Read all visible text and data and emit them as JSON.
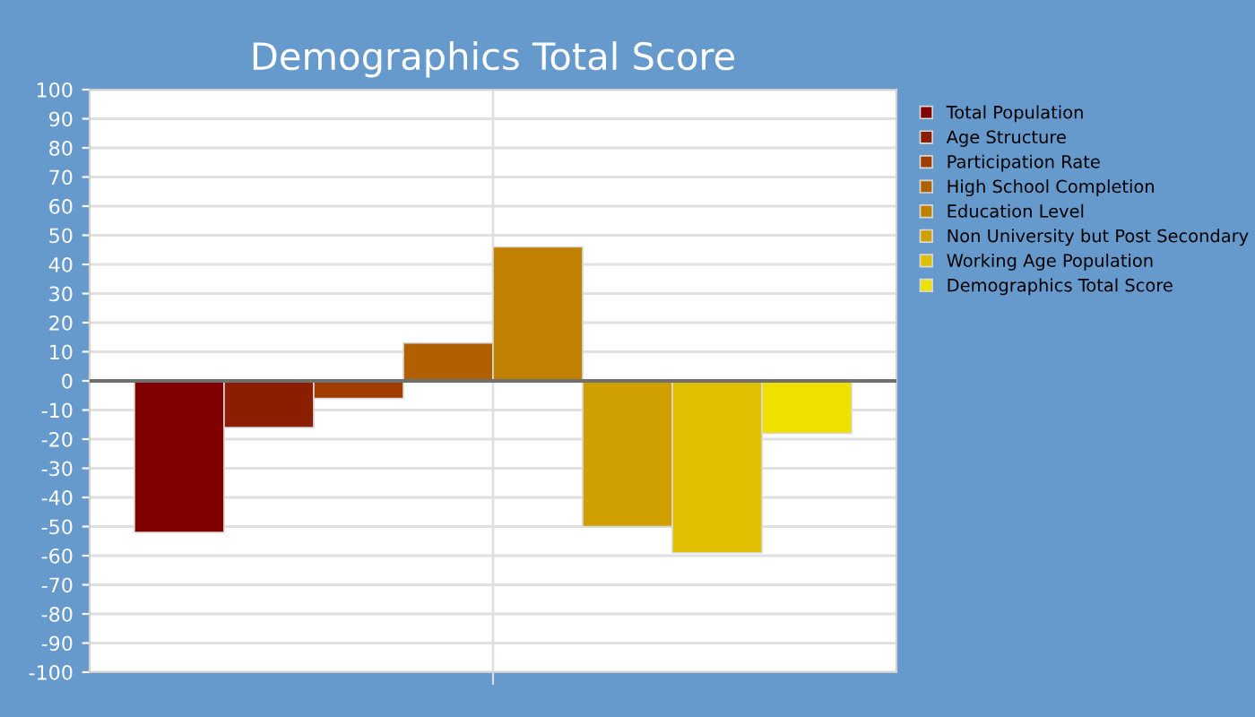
{
  "chart_data": {
    "type": "bar",
    "title": "Demographics Total Score",
    "categories": [
      null
    ],
    "series": [
      {
        "name": "Total Population",
        "color": "#800000",
        "values": [
          -52
        ]
      },
      {
        "name": "Age Structure",
        "color": "#8b1e00",
        "values": [
          -16
        ]
      },
      {
        "name": "Participation Rate",
        "color": "#a03c00",
        "values": [
          -6
        ]
      },
      {
        "name": "High School Completion",
        "color": "#b06000",
        "values": [
          13
        ]
      },
      {
        "name": "Education Level",
        "color": "#c08000",
        "values": [
          46
        ]
      },
      {
        "name": "Non University but Post Secondary",
        "color": "#d0a000",
        "values": [
          -50
        ]
      },
      {
        "name": "Working Age Population",
        "color": "#e0c000",
        "values": [
          -59
        ]
      },
      {
        "name": "Demographics Total Score",
        "color": "#eee000",
        "values": [
          -18
        ]
      }
    ],
    "ylim": [
      -100,
      100
    ],
    "yticks": [
      -100,
      -90,
      -80,
      -70,
      -60,
      -50,
      -40,
      -30,
      -20,
      -10,
      0,
      10,
      20,
      30,
      40,
      50,
      60,
      70,
      80,
      90,
      100
    ],
    "grid": true,
    "legend": "right"
  }
}
